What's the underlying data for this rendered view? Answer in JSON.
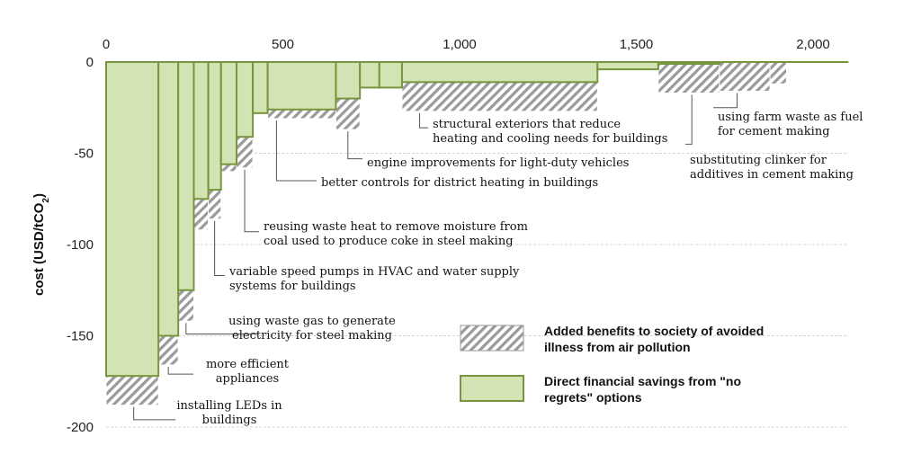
{
  "chart_data": {
    "type": "bar",
    "variant": "marginal-abatement-cost-curve",
    "ylabel": "cost (USD/tCO2)",
    "xlim": [
      0,
      2100
    ],
    "ylim": [
      -200,
      0
    ],
    "x_ticks": [
      {
        "value": 0,
        "label": "0"
      },
      {
        "value": 500,
        "label": "500"
      },
      {
        "value": 1000,
        "label": "1,000"
      },
      {
        "value": 1500,
        "label": "1,500"
      },
      {
        "value": 2000,
        "label": "2,000"
      }
    ],
    "y_ticks": [
      {
        "value": 0,
        "label": "0"
      },
      {
        "value": -50,
        "label": "-50"
      },
      {
        "value": -100,
        "label": "-100"
      },
      {
        "value": -150,
        "label": "-150"
      },
      {
        "value": -200,
        "label": "-200"
      }
    ],
    "grid": "horizontal",
    "legend_position": "bottom-right",
    "series": [
      {
        "name": "Added benefits to society of avoided illness from air pollution",
        "color": "#a6a6a6",
        "pattern": "hatch"
      },
      {
        "name": "Direct financial savings from \"no regrets\" options",
        "color": "#d3e4b4",
        "edge": "#77953d"
      }
    ],
    "bars": [
      {
        "x0": 0,
        "x1": 148,
        "financial": -172,
        "total": -188
      },
      {
        "x0": 148,
        "x1": 204,
        "financial": -150,
        "total": -166
      },
      {
        "x0": 204,
        "x1": 248,
        "financial": -125,
        "total": -142
      },
      {
        "x0": 248,
        "x1": 289,
        "financial": -75,
        "total": -92
      },
      {
        "x0": 289,
        "x1": 325,
        "financial": -70,
        "total": -86
      },
      {
        "x0": 325,
        "x1": 369,
        "financial": -56,
        "total": -60
      },
      {
        "x0": 369,
        "x1": 415,
        "financial": -41,
        "total": -58
      },
      {
        "x0": 415,
        "x1": 457,
        "financial": -28,
        "total": -28
      },
      {
        "x0": 457,
        "x1": 650,
        "financial": -26,
        "total": -31
      },
      {
        "x0": 650,
        "x1": 718,
        "financial": -20,
        "total": -37
      },
      {
        "x0": 718,
        "x1": 773,
        "financial": -14,
        "total": -14
      },
      {
        "x0": 773,
        "x1": 837,
        "financial": -14,
        "total": -14
      },
      {
        "x0": 837,
        "x1": 1390,
        "financial": -11,
        "total": -27
      },
      {
        "x0": 1390,
        "x1": 1562,
        "financial": -4,
        "total": -4
      },
      {
        "x0": 1562,
        "x1": 1735,
        "financial": -1,
        "total": -17
      },
      {
        "x0": 1735,
        "x1": 1878,
        "financial": 0,
        "total": -16
      },
      {
        "x0": 1878,
        "x1": 1925,
        "financial": 0,
        "total": -12
      }
    ],
    "annotations": [
      {
        "bar": 0,
        "lines": [
          "installing LEDs in",
          "buildings"
        ]
      },
      {
        "bar": 1,
        "lines": [
          "more efficient",
          "appliances"
        ]
      },
      {
        "bar": 2,
        "lines": [
          "using waste gas to generate",
          "electricity for steel making"
        ]
      },
      {
        "bar": 4,
        "lines": [
          "variable speed pumps in HVAC and water supply",
          "systems for buildings"
        ]
      },
      {
        "bar": 6,
        "lines": [
          "reusing waste heat to remove moisture from",
          "coal used to produce coke in steel making"
        ]
      },
      {
        "bar": 8,
        "lines": [
          "better controls for district heating in buildings"
        ]
      },
      {
        "bar": 9,
        "lines": [
          "engine improvements for light-duty vehicles"
        ]
      },
      {
        "bar": 12,
        "lines": [
          "structural exteriors that reduce",
          "heating and cooling needs for buildings"
        ]
      },
      {
        "bar": 14,
        "lines": [
          "substituting clinker for",
          "additives in cement making"
        ]
      },
      {
        "bar": 15,
        "lines": [
          "using farm waste as fuel",
          "for cement making"
        ]
      }
    ]
  }
}
